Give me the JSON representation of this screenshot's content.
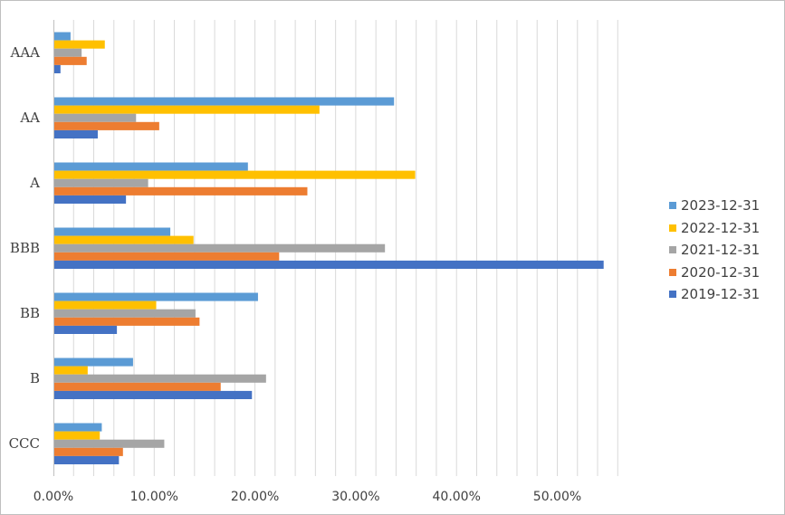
{
  "chart_data": {
    "type": "bar",
    "orientation": "horizontal",
    "title": "",
    "xlabel": "",
    "ylabel": "",
    "categories": [
      "AAA",
      "AA",
      "A",
      "BBB",
      "BB",
      "B",
      "CCC"
    ],
    "x_ticks": [
      "0.00%",
      "10.00%",
      "20.00%",
      "30.00%",
      "40.00%",
      "50.00%"
    ],
    "xlim": [
      0,
      56
    ],
    "grid": "vertical",
    "legend_position": "right",
    "series": [
      {
        "name": "2023-12-31",
        "color": "#5b9bd5",
        "values": [
          1.7,
          33.8,
          19.3,
          11.6,
          20.3,
          7.9,
          4.8
        ]
      },
      {
        "name": "2022-12-31",
        "color": "#ffc000",
        "values": [
          5.1,
          26.4,
          35.9,
          13.9,
          10.2,
          3.4,
          4.6
        ]
      },
      {
        "name": "2021-12-31",
        "color": "#a5a5a5",
        "values": [
          2.8,
          8.2,
          9.4,
          32.9,
          14.1,
          21.1,
          11.0
        ]
      },
      {
        "name": "2020-12-31",
        "color": "#ed7d31",
        "values": [
          3.3,
          10.5,
          25.2,
          22.4,
          14.5,
          16.6,
          6.9
        ]
      },
      {
        "name": "2019-12-31",
        "color": "#4472c4",
        "values": [
          0.7,
          4.4,
          7.2,
          54.6,
          6.3,
          19.7,
          6.5
        ]
      }
    ]
  }
}
